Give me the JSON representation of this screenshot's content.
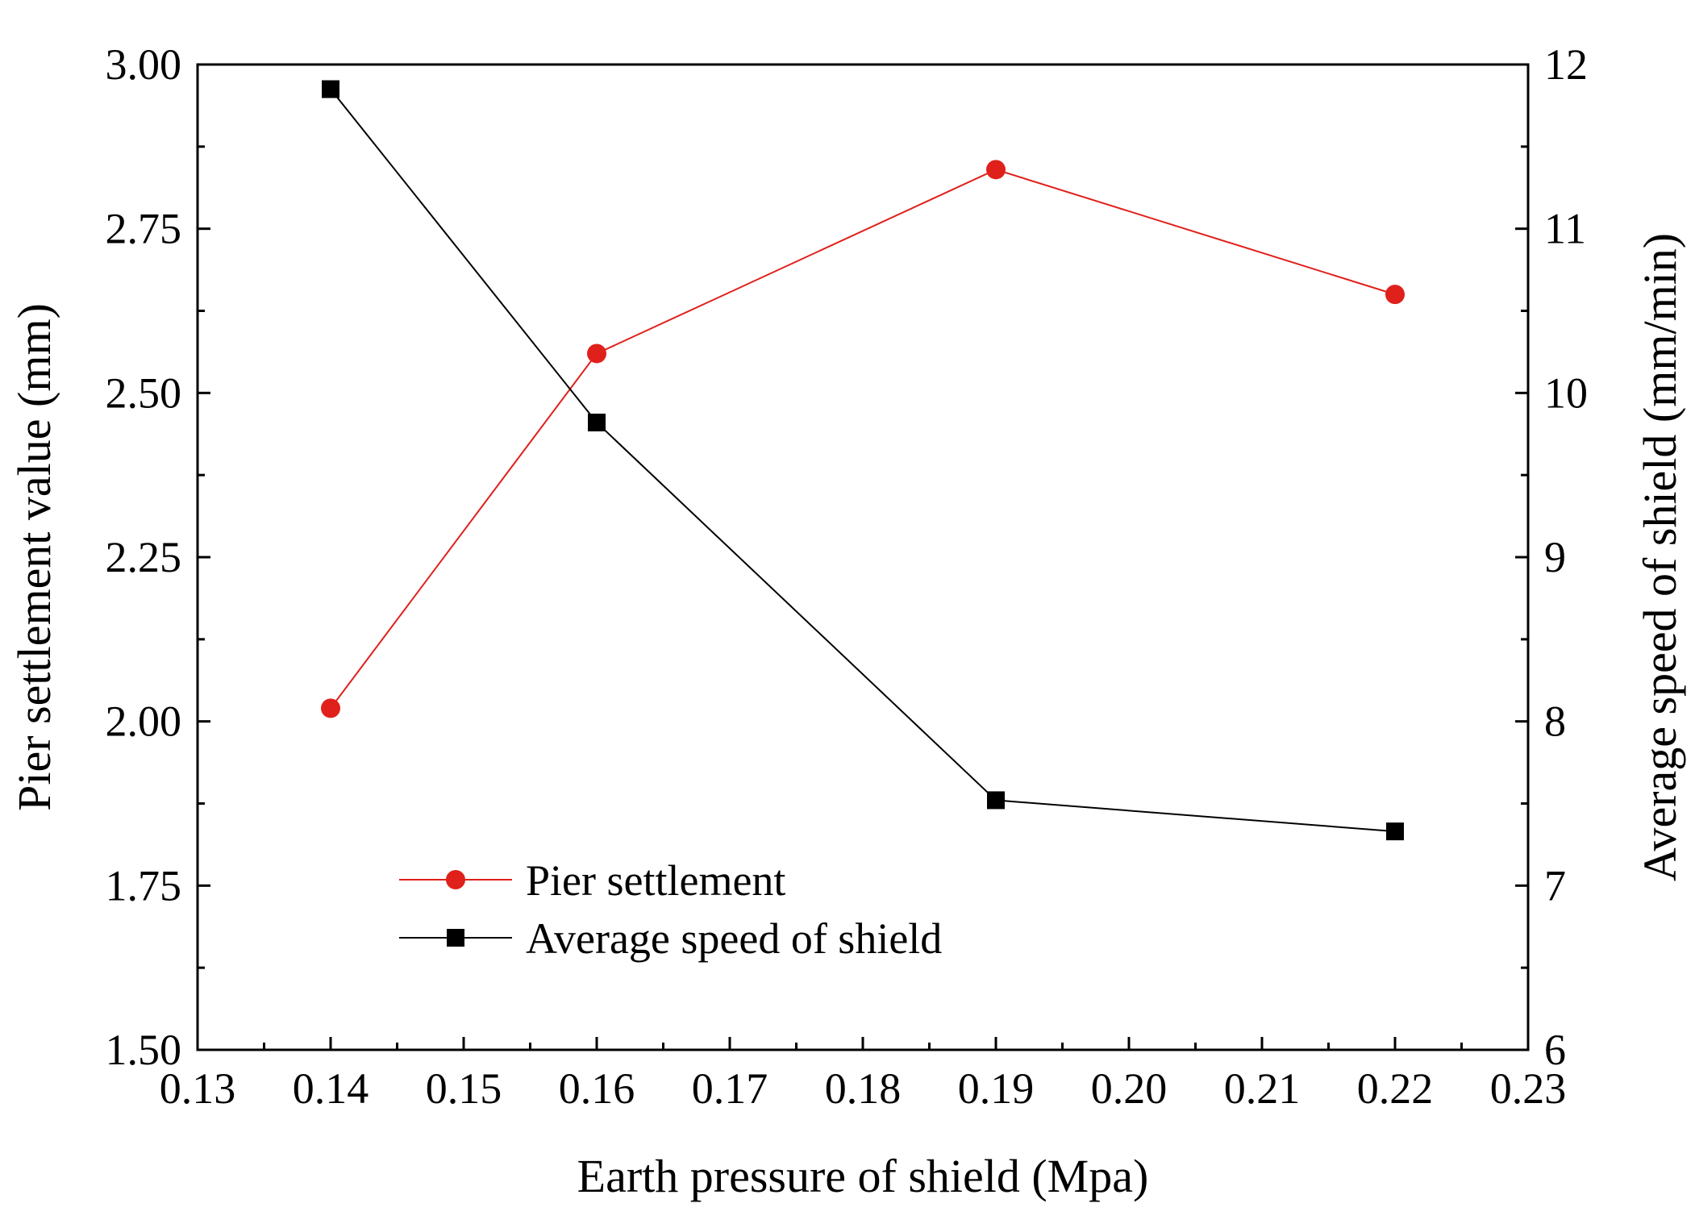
{
  "chart_data": {
    "type": "line",
    "title": "",
    "xlabel": "Earth pressure of shield (Mpa)",
    "ylabel_left": "Pier settlement value (mm)",
    "ylabel_right": "Average speed of shield (mm/min)",
    "xlim": [
      0.13,
      0.23
    ],
    "ylim_left": [
      1.5,
      3.0
    ],
    "ylim_right": [
      6,
      12
    ],
    "x_ticks": [
      "0.13",
      "0.14",
      "0.15",
      "0.16",
      "0.17",
      "0.18",
      "0.19",
      "0.20",
      "0.21",
      "0.22",
      "0.23"
    ],
    "y_left_ticks": [
      "1.50",
      "1.75",
      "2.00",
      "2.25",
      "2.50",
      "2.75",
      "3.00"
    ],
    "y_right_ticks": [
      "6",
      "7",
      "8",
      "9",
      "10",
      "11",
      "12"
    ],
    "grid": false,
    "legend_position": "lower-left",
    "series": [
      {
        "name": "Pier settlement",
        "axis": "left",
        "marker": "circle",
        "color": "#e0201b",
        "x": [
          0.14,
          0.16,
          0.19,
          0.22
        ],
        "values": [
          2.02,
          2.56,
          2.84,
          2.65
        ]
      },
      {
        "name": "Average speed of shield",
        "axis": "right",
        "marker": "square",
        "color": "#000000",
        "x": [
          0.14,
          0.16,
          0.19,
          0.22
        ],
        "values": [
          11.85,
          9.82,
          7.52,
          7.33
        ]
      }
    ]
  }
}
